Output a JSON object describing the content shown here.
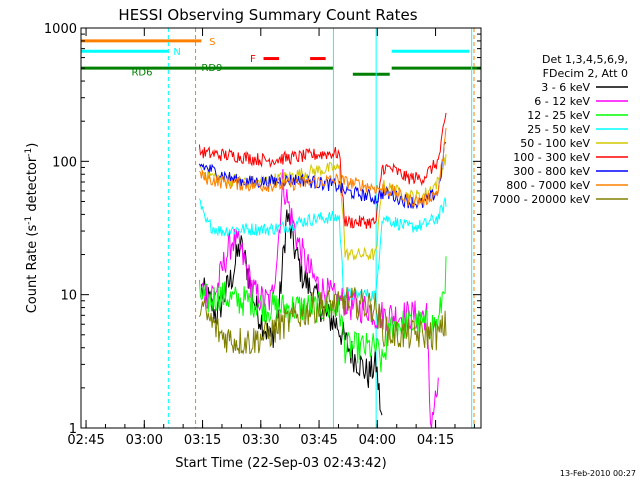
{
  "chart_data": {
    "type": "line",
    "title": "HESSI Observing Summary Count Rates",
    "xlabel": "Start Time (22-Sep-03 02:43:42)",
    "ylabel_main": "Count Rate (s",
    "ylabel_sup1": "-1",
    "ylabel_mid": " detector",
    "ylabel_sup2": "-1",
    "ylabel_end": ")",
    "x_unit": "minutes since 02:43:42",
    "x_range": [
      0,
      103
    ],
    "y_range": [
      1,
      1000
    ],
    "y_scale": "log",
    "x_ticks": [
      {
        "label": "02:45",
        "value": 1.3
      },
      {
        "label": "03:00",
        "value": 16.3
      },
      {
        "label": "03:15",
        "value": 31.3
      },
      {
        "label": "03:30",
        "value": 46.3
      },
      {
        "label": "03:45",
        "value": 61.3
      },
      {
        "label": "04:00",
        "value": 76.3
      },
      {
        "label": "04:15",
        "value": 91.3
      }
    ],
    "y_ticks": [
      {
        "label": "1",
        "value": 1
      },
      {
        "label": "10",
        "value": 10
      },
      {
        "label": "100",
        "value": 100
      },
      {
        "label": "1000",
        "value": 1000
      }
    ],
    "legend": {
      "header": [
        "Det 1,3,4,5,6,9,",
        "FDecim 2, Att 0"
      ],
      "entries": [
        {
          "label": "3 - 6 keV",
          "color": "#000000"
        },
        {
          "label": "6 - 12 keV",
          "color": "#ff00ff"
        },
        {
          "label": "12 - 25 keV",
          "color": "#00ff00"
        },
        {
          "label": "25 - 50 keV",
          "color": "#00ffff"
        },
        {
          "label": "50 - 100 keV",
          "color": "#d4c800"
        },
        {
          "label": "100 - 300 keV",
          "color": "#ff0000"
        },
        {
          "label": "300 - 800 keV",
          "color": "#0000ff"
        },
        {
          "label": "800 - 7000 keV",
          "color": "#ff8000"
        },
        {
          "label": "7000 - 20000 keV",
          "color": "#808000"
        }
      ]
    },
    "flag_labels": [
      {
        "label": "S",
        "color": "#ff8000"
      },
      {
        "label": "N",
        "color": "#00ffff"
      },
      {
        "label": "RD6",
        "color": "#008000"
      },
      {
        "label": "RD9",
        "color": "#008000"
      },
      {
        "label": "F",
        "color": "#ff0000"
      }
    ],
    "series": [
      {
        "name": "3 - 6 keV",
        "color": "#000000",
        "x": [
          31,
          33,
          35,
          37,
          39,
          41,
          43,
          45,
          47,
          49,
          51,
          53,
          55,
          57,
          59,
          61,
          63,
          66,
          68,
          70,
          72,
          74,
          76,
          77.5
        ],
        "y": [
          11,
          9,
          7,
          10,
          14,
          24,
          15,
          8,
          6,
          4.5,
          8,
          40,
          22,
          14,
          11,
          9,
          7,
          6,
          4.5,
          3.5,
          3,
          2.5,
          3,
          1.1
        ]
      },
      {
        "name": "6 - 12 keV",
        "color": "#ff00ff",
        "x": [
          31,
          33,
          35,
          37,
          39,
          41,
          43,
          45,
          47,
          49,
          50.5,
          52,
          54,
          56,
          58,
          60,
          62,
          64,
          66,
          68,
          70,
          72,
          74,
          76,
          78,
          80,
          82,
          84,
          86,
          88,
          89,
          90,
          91,
          92
        ],
        "y": [
          11,
          10,
          11,
          18,
          26,
          22,
          14,
          10,
          9,
          9,
          20,
          70,
          40,
          24,
          17,
          13,
          11,
          10,
          9,
          9,
          8,
          8,
          8,
          7,
          7,
          7,
          7,
          7,
          7,
          7,
          7,
          1.1,
          1.5,
          2
        ]
      },
      {
        "name": "12 - 25 keV",
        "color": "#00ff00",
        "x": [
          30.5,
          33,
          36,
          40,
          44,
          48,
          52,
          56,
          60,
          64,
          66.5,
          68,
          72,
          76,
          77.5,
          80,
          84,
          88,
          92,
          94
        ],
        "y": [
          10,
          9,
          10,
          9,
          9,
          8,
          8,
          8,
          8,
          8,
          8,
          4,
          4,
          4,
          3,
          6,
          6,
          6,
          6,
          15
        ]
      },
      {
        "name": "25 - 50 keV",
        "color": "#00ffff",
        "x": [
          30.5,
          32,
          34,
          36,
          40,
          44,
          48,
          52,
          56,
          60,
          64,
          66.5,
          67.5,
          68,
          72,
          76,
          77.5,
          80,
          84,
          88,
          92,
          94
        ],
        "y": [
          50,
          35,
          32,
          30,
          31,
          31,
          31,
          32,
          35,
          37,
          38,
          38,
          12,
          10,
          10,
          10,
          38,
          36,
          32,
          33,
          38,
          50
        ]
      },
      {
        "name": "50 - 100 keV",
        "color": "#d4c800",
        "x": [
          30.5,
          32,
          36,
          40,
          44,
          48,
          52,
          56,
          60,
          64,
          66.5,
          67.5,
          68,
          72,
          76,
          77.5,
          80,
          84,
          88,
          92,
          94
        ],
        "y": [
          90,
          80,
          75,
          72,
          70,
          72,
          75,
          80,
          85,
          88,
          88,
          40,
          20,
          20,
          20,
          66,
          62,
          55,
          55,
          70,
          110
        ]
      },
      {
        "name": "100 - 300 keV",
        "color": "#ff0000",
        "x": [
          30.5,
          32,
          36,
          40,
          44,
          48,
          52,
          56,
          60,
          64,
          66.5,
          67.5,
          68,
          72,
          76,
          77.5,
          80,
          84,
          88,
          92,
          94
        ],
        "y": [
          120,
          115,
          112,
          110,
          105,
          102,
          105,
          108,
          112,
          115,
          115,
          50,
          35,
          35,
          35,
          90,
          88,
          75,
          75,
          100,
          220
        ]
      },
      {
        "name": "300 - 800 keV",
        "color": "#0000ff",
        "x": [
          30.5,
          32,
          36,
          40,
          44,
          48,
          52,
          56,
          60,
          64,
          66.5,
          67.5,
          70,
          74,
          76,
          77.5,
          80,
          84,
          88,
          92,
          94
        ],
        "y": [
          95,
          90,
          80,
          72,
          70,
          70,
          72,
          73,
          70,
          67,
          65,
          60,
          58,
          55,
          52,
          58,
          56,
          50,
          48,
          60,
          150
        ]
      },
      {
        "name": "800 - 7000 keV",
        "color": "#ff8000",
        "x": [
          30.5,
          32,
          36,
          40,
          44,
          48,
          52,
          56,
          60,
          64,
          66.5,
          68,
          72,
          76,
          77.5,
          80,
          84,
          88,
          92,
          94
        ],
        "y": [
          80,
          75,
          70,
          68,
          66,
          66,
          67,
          68,
          70,
          72,
          73,
          70,
          67,
          63,
          62,
          60,
          52,
          50,
          60,
          160
        ]
      },
      {
        "name": "7000 - 20000 keV",
        "color": "#808000",
        "x": [
          30.5,
          32,
          34,
          36,
          40,
          44,
          48,
          52,
          56,
          60,
          64,
          66.5,
          68,
          72,
          76,
          77.5,
          80,
          84,
          88,
          92,
          94
        ],
        "y": [
          9,
          7,
          6,
          5,
          4.5,
          4.5,
          5,
          6,
          7,
          8,
          8.5,
          8,
          9,
          8.5,
          8,
          5.5,
          5,
          5,
          5,
          5,
          6
        ]
      }
    ]
  },
  "timestamp": "13-Feb-2010 00:27"
}
